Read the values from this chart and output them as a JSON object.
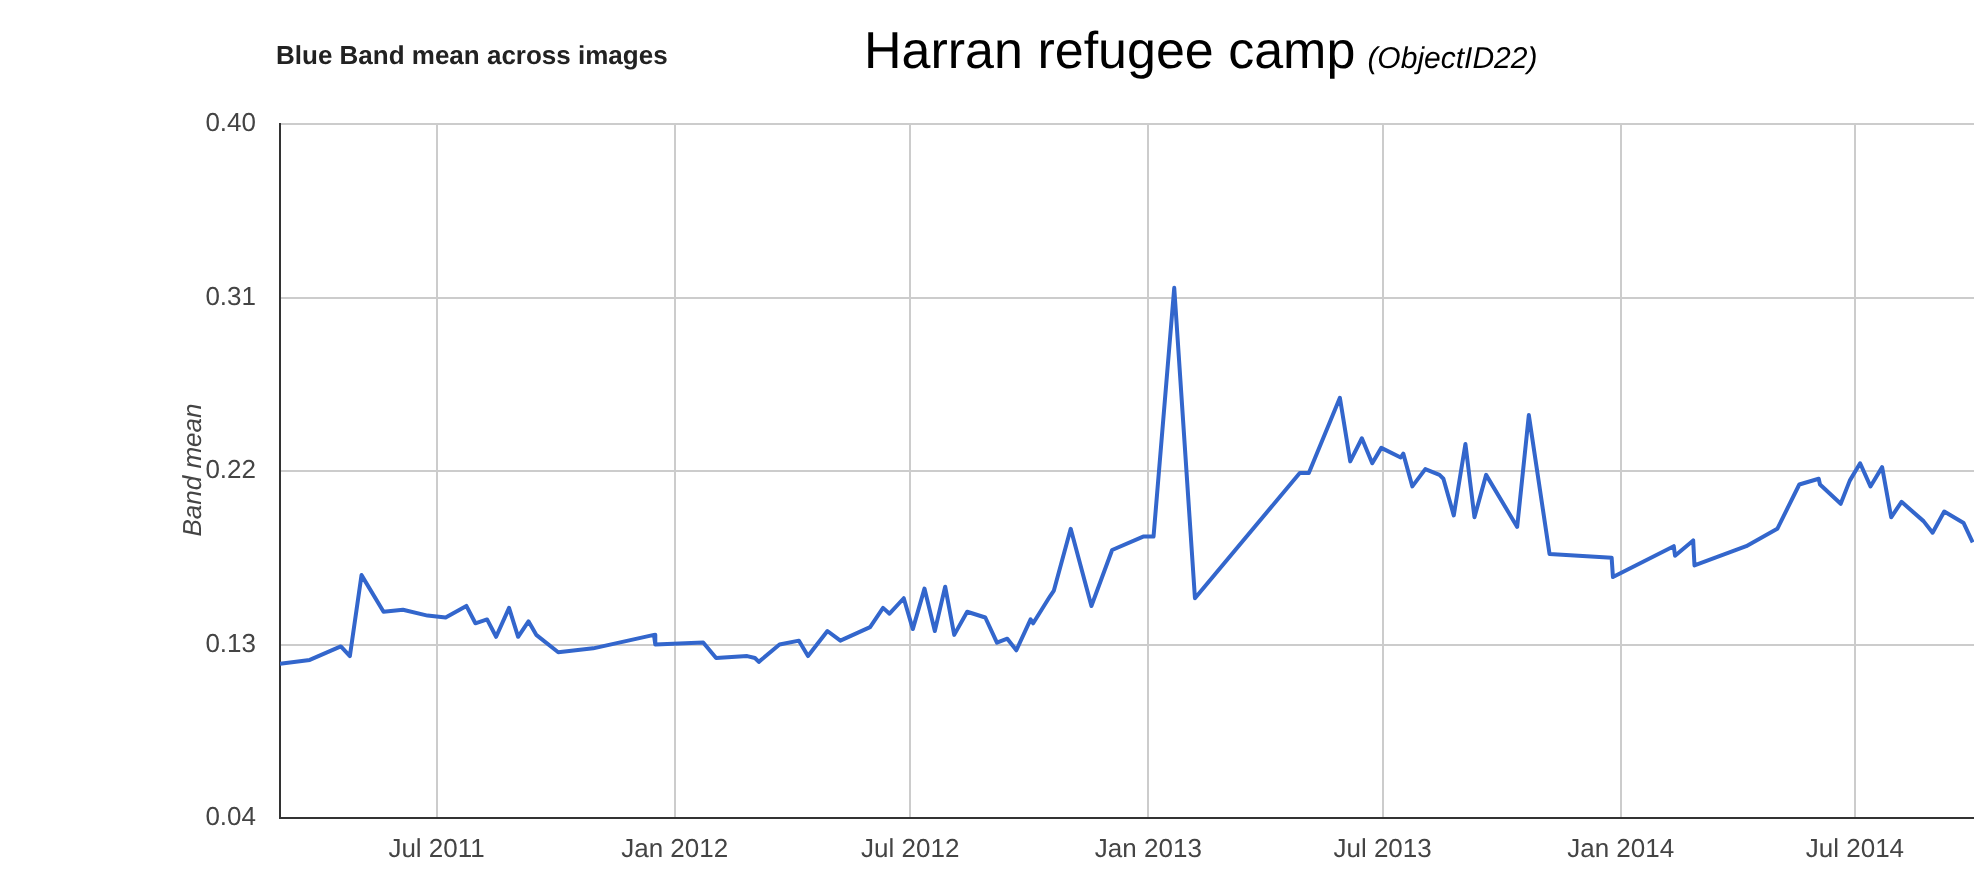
{
  "chart_data": {
    "type": "line",
    "title": "Harran refugee camp",
    "subtitle": "(ObjectID22)",
    "ylabel": "Band mean",
    "annotations": [
      "Blue Band mean across images"
    ],
    "x": [
      "2011-03-02",
      "2011-03-25",
      "2011-04-18",
      "2011-04-25",
      "2011-05-04",
      "2011-05-21",
      "2011-06-05",
      "2011-06-24",
      "2011-07-08",
      "2011-07-24",
      "2011-07-31",
      "2011-08-09",
      "2011-08-16",
      "2011-08-26",
      "2011-09-02",
      "2011-09-10",
      "2011-09-16",
      "2011-10-03",
      "2011-10-30",
      "2011-12-16",
      "2011-12-17",
      "2012-01-23",
      "2012-02-02",
      "2012-02-26",
      "2012-03-03",
      "2012-03-06",
      "2012-03-22",
      "2012-04-06",
      "2012-04-13",
      "2012-04-28",
      "2012-05-08",
      "2012-05-31",
      "2012-06-10",
      "2012-06-15",
      "2012-06-26",
      "2012-07-03",
      "2012-07-12",
      "2012-07-20",
      "2012-07-28",
      "2012-08-04",
      "2012-08-14",
      "2012-08-28",
      "2012-09-06",
      "2012-09-14",
      "2012-09-21",
      "2012-10-02",
      "2012-10-04",
      "2012-10-17",
      "2012-10-20",
      "2012-11-02",
      "2012-11-18",
      "2012-12-04",
      "2012-12-28",
      "2013-01-05",
      "2013-01-21",
      "2013-02-06",
      "2013-04-28",
      "2013-05-05",
      "2013-05-29",
      "2013-06-06",
      "2013-06-15",
      "2013-06-23",
      "2013-06-30",
      "2013-07-15",
      "2013-07-17",
      "2013-07-24",
      "2013-08-03",
      "2013-08-14",
      "2013-08-17",
      "2013-08-25",
      "2013-09-03",
      "2013-09-10",
      "2013-09-19",
      "2013-10-13",
      "2013-10-22",
      "2013-11-07",
      "2013-12-25",
      "2013-12-26",
      "2014-02-11",
      "2014-02-12",
      "2014-02-26",
      "2014-02-27",
      "2014-04-08",
      "2014-05-02",
      "2014-05-19",
      "2014-06-03",
      "2014-06-04",
      "2014-06-20",
      "2014-06-27",
      "2014-07-05",
      "2014-07-13",
      "2014-07-22",
      "2014-07-29",
      "2014-08-06",
      "2014-08-23",
      "2014-08-30",
      "2014-09-08",
      "2014-09-23",
      "2014-09-30"
    ],
    "series": [
      {
        "color": "#3366cc",
        "values": [
          0.12,
          0.122,
          0.129,
          0.124,
          0.166,
          0.147,
          0.148,
          0.145,
          0.144,
          0.15,
          0.141,
          0.143,
          0.134,
          0.149,
          0.134,
          0.142,
          0.135,
          0.126,
          0.128,
          0.135,
          0.13,
          0.131,
          0.123,
          0.124,
          0.123,
          0.121,
          0.13,
          0.132,
          0.124,
          0.137,
          0.132,
          0.139,
          0.149,
          0.146,
          0.154,
          0.138,
          0.159,
          0.137,
          0.16,
          0.135,
          0.147,
          0.144,
          0.131,
          0.133,
          0.127,
          0.143,
          0.141,
          0.155,
          0.158,
          0.19,
          0.15,
          0.179,
          0.186,
          0.186,
          0.315,
          0.154,
          0.219,
          0.219,
          0.258,
          0.225,
          0.237,
          0.224,
          0.232,
          0.227,
          0.229,
          0.212,
          0.221,
          0.218,
          0.216,
          0.197,
          0.234,
          0.196,
          0.218,
          0.191,
          0.249,
          0.177,
          0.175,
          0.165,
          0.181,
          0.176,
          0.184,
          0.171,
          0.181,
          0.19,
          0.213,
          0.216,
          0.213,
          0.203,
          0.215,
          0.224,
          0.212,
          0.222,
          0.196,
          0.204,
          0.194,
          0.188,
          0.199,
          0.193,
          0.183
        ]
      }
    ],
    "xlim": [
      "2011-03-02",
      "2014-10-01"
    ],
    "xticks": [
      {
        "value": "2011-07",
        "label": "Jul 2011"
      },
      {
        "value": "2012-01",
        "label": "Jan 2012"
      },
      {
        "value": "2012-07",
        "label": "Jul 2012"
      },
      {
        "value": "2013-01",
        "label": "Jan 2013"
      },
      {
        "value": "2013-07",
        "label": "Jul 2013"
      },
      {
        "value": "2014-01",
        "label": "Jan 2014"
      },
      {
        "value": "2014-07",
        "label": "Jul 2014"
      }
    ],
    "ylim": [
      0.04,
      0.4
    ],
    "yticks": [
      {
        "value": 0.04,
        "label": "0.04"
      },
      {
        "value": 0.13,
        "label": "0.13"
      },
      {
        "value": 0.22,
        "label": "0.22"
      },
      {
        "value": 0.31,
        "label": "0.31"
      },
      {
        "value": 0.4,
        "label": "0.40"
      }
    ],
    "grid": true,
    "legend": false,
    "marker": "none",
    "line_style": "solid"
  }
}
